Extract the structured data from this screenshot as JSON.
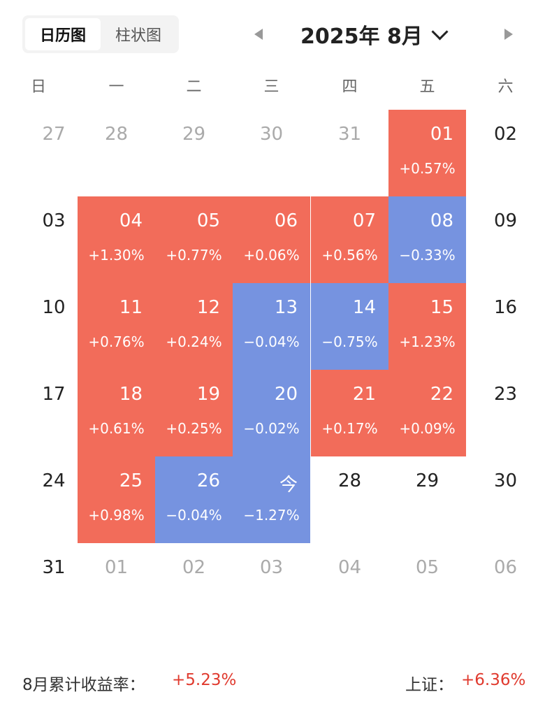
{
  "tabs": [
    {
      "label": "日历图",
      "active": true
    },
    {
      "label": "柱状图",
      "active": false
    }
  ],
  "header": {
    "title": "2025年 8月"
  },
  "weekdays": [
    "日",
    "一",
    "二",
    "三",
    "四",
    "五",
    "六"
  ],
  "colors": {
    "up": "#f26c5a",
    "down": "#7693e0",
    "up_text": "#e03a2e"
  },
  "weeks": [
    [
      {
        "day": "27",
        "style": "muted"
      },
      {
        "day": "28",
        "style": "muted"
      },
      {
        "day": "29",
        "style": "muted"
      },
      {
        "day": "30",
        "style": "muted"
      },
      {
        "day": "31",
        "style": "muted"
      },
      {
        "day": "01",
        "pct": "+0.57%",
        "style": "up"
      },
      {
        "day": "02",
        "style": "normal"
      }
    ],
    [
      {
        "day": "03",
        "style": "normal"
      },
      {
        "day": "04",
        "pct": "+1.30%",
        "style": "up"
      },
      {
        "day": "05",
        "pct": "+0.77%",
        "style": "up"
      },
      {
        "day": "06",
        "pct": "+0.06%",
        "style": "up"
      },
      {
        "day": "07",
        "pct": "+0.56%",
        "style": "up"
      },
      {
        "day": "08",
        "pct": "−0.33%",
        "style": "down"
      },
      {
        "day": "09",
        "style": "normal"
      }
    ],
    [
      {
        "day": "10",
        "style": "normal"
      },
      {
        "day": "11",
        "pct": "+0.76%",
        "style": "up"
      },
      {
        "day": "12",
        "pct": "+0.24%",
        "style": "up"
      },
      {
        "day": "13",
        "pct": "−0.04%",
        "style": "down"
      },
      {
        "day": "14",
        "pct": "−0.75%",
        "style": "down"
      },
      {
        "day": "15",
        "pct": "+1.23%",
        "style": "up"
      },
      {
        "day": "16",
        "style": "normal"
      }
    ],
    [
      {
        "day": "17",
        "style": "normal"
      },
      {
        "day": "18",
        "pct": "+0.61%",
        "style": "up"
      },
      {
        "day": "19",
        "pct": "+0.25%",
        "style": "up"
      },
      {
        "day": "20",
        "pct": "−0.02%",
        "style": "down"
      },
      {
        "day": "21",
        "pct": "+0.17%",
        "style": "up"
      },
      {
        "day": "22",
        "pct": "+0.09%",
        "style": "up"
      },
      {
        "day": "23",
        "style": "normal"
      }
    ],
    [
      {
        "day": "24",
        "style": "normal"
      },
      {
        "day": "25",
        "pct": "+0.98%",
        "style": "up"
      },
      {
        "day": "26",
        "pct": "−0.04%",
        "style": "down"
      },
      {
        "day": "今",
        "pct": "−1.27%",
        "style": "down"
      },
      {
        "day": "28",
        "style": "normal"
      },
      {
        "day": "29",
        "style": "normal"
      },
      {
        "day": "30",
        "style": "normal"
      }
    ],
    [
      {
        "day": "31",
        "style": "normal"
      },
      {
        "day": "01",
        "style": "muted"
      },
      {
        "day": "02",
        "style": "muted"
      },
      {
        "day": "03",
        "style": "muted"
      },
      {
        "day": "04",
        "style": "muted"
      },
      {
        "day": "05",
        "style": "muted"
      },
      {
        "day": "06",
        "style": "muted"
      }
    ]
  ],
  "footer": {
    "monthly_label": "8月累计收益率：",
    "monthly_value": "+5.23%",
    "index_label": "上证：",
    "index_value": "+6.36%"
  }
}
